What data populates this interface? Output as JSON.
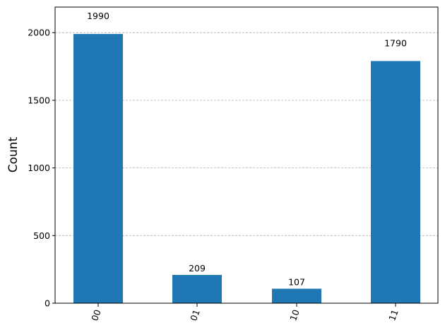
{
  "chart_data": {
    "type": "bar",
    "categories": [
      "00",
      "01",
      "10",
      "11"
    ],
    "values": [
      1990,
      209,
      107,
      1790
    ],
    "title": "",
    "xlabel": "",
    "ylabel": "Count",
    "ylim": [
      0,
      2189
    ],
    "yticks": [
      0,
      500,
      1000,
      1500,
      2000
    ],
    "grid": "y-dashed",
    "bar_color": "#1f77b4",
    "data_labels": true,
    "xtick_rotation": 70
  }
}
